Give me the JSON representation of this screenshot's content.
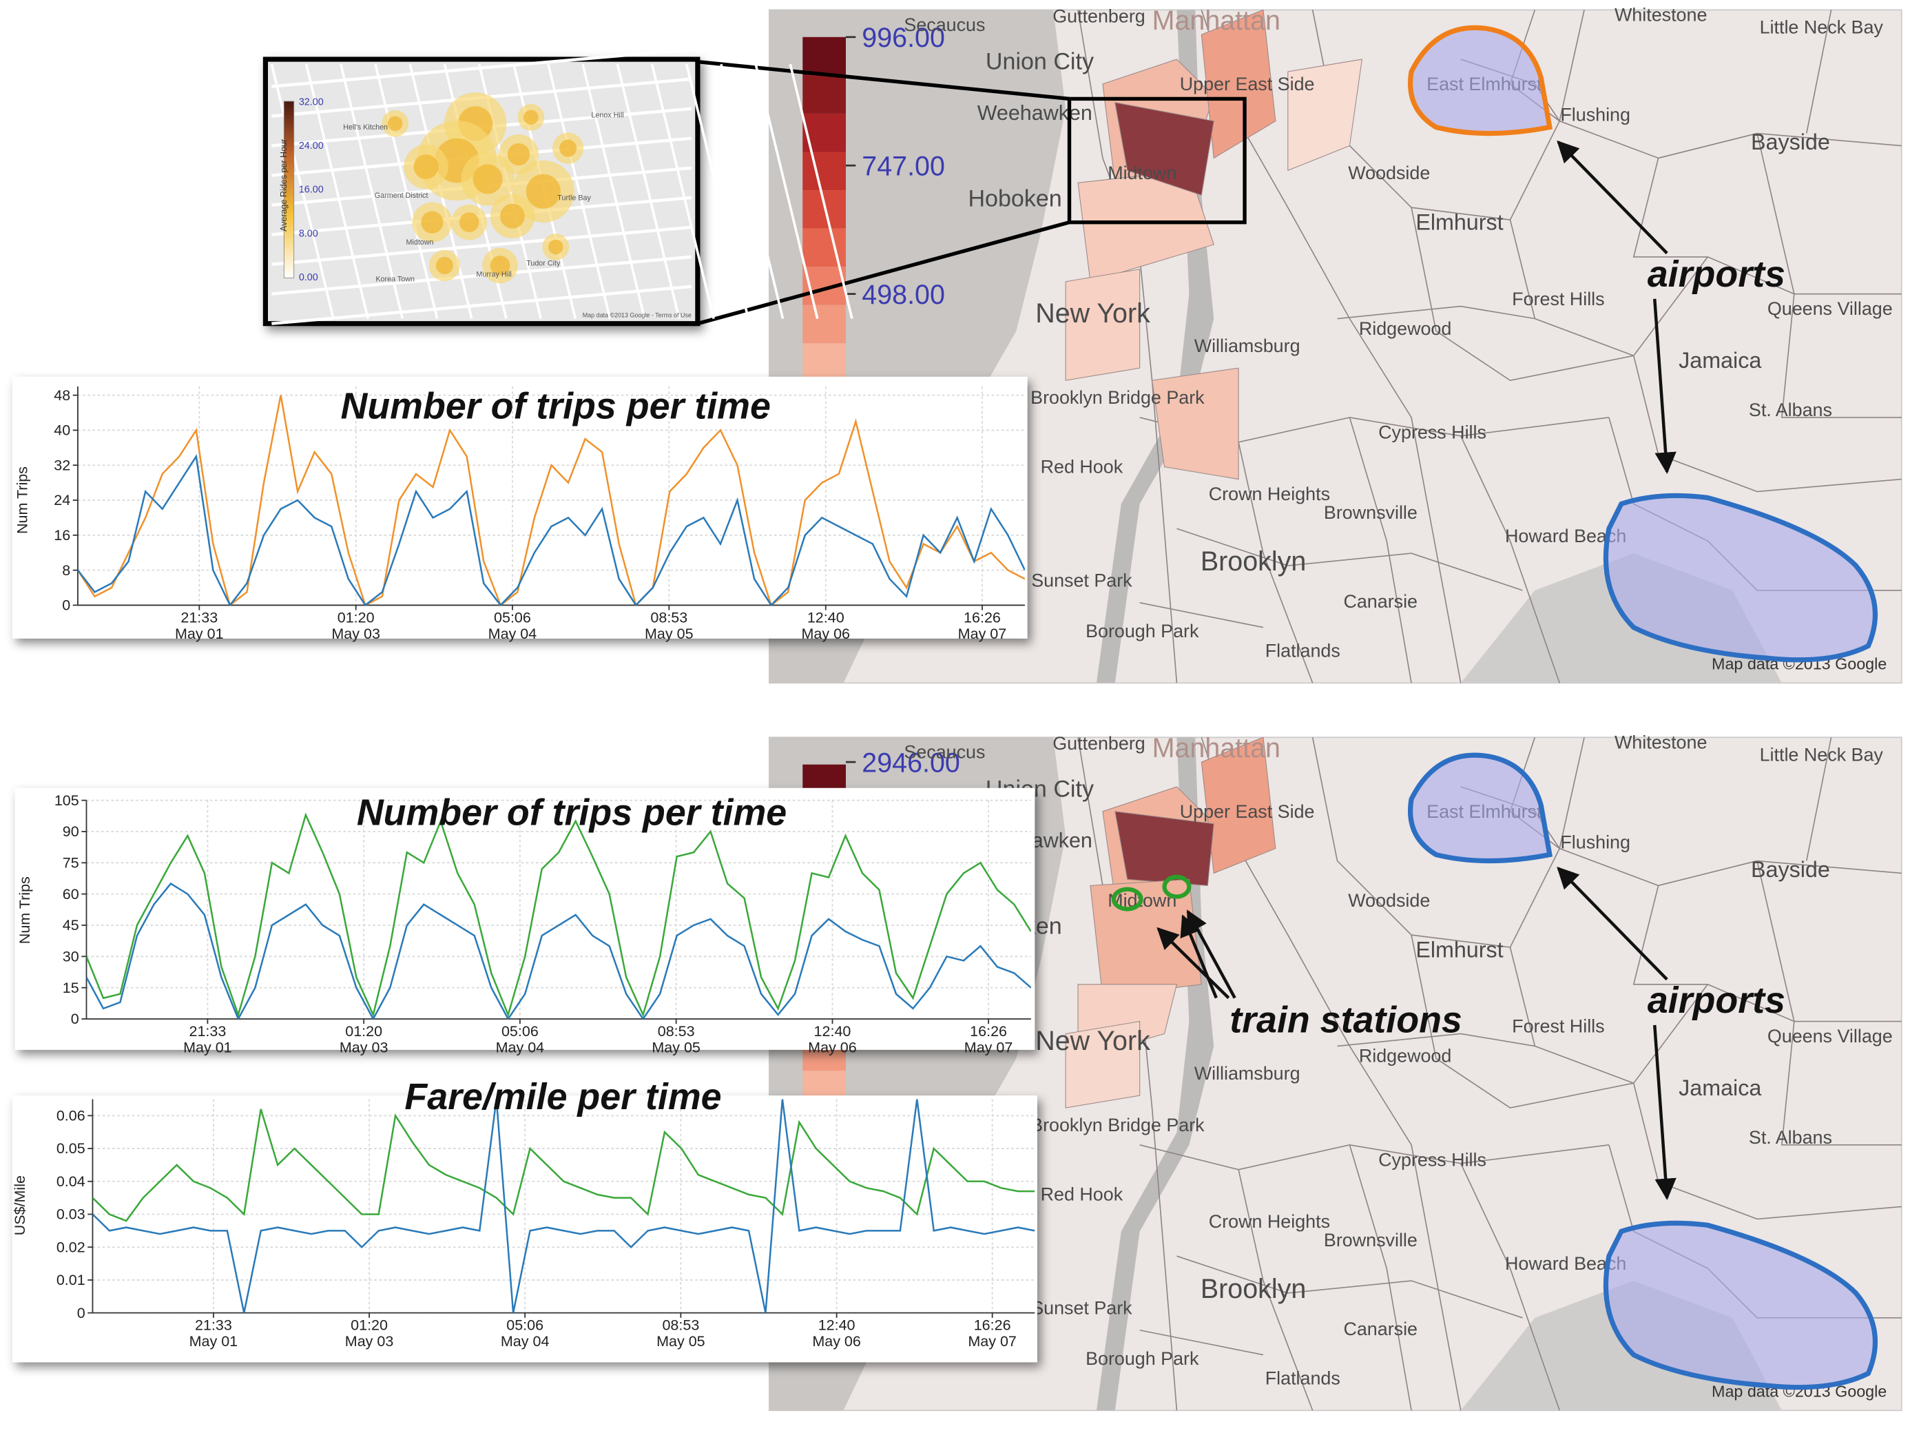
{
  "chart_data": [
    {
      "type": "line",
      "title": "Number of trips per time",
      "ylabel": "Num Trips",
      "x": [
        0,
        3,
        6,
        9,
        12,
        15,
        18,
        21,
        24,
        27,
        30,
        33,
        36,
        39,
        42,
        45,
        48,
        51,
        54,
        57,
        60,
        63,
        66,
        69,
        72,
        75,
        78,
        81,
        84,
        87,
        90,
        93,
        96,
        99,
        102,
        105,
        108,
        111,
        114,
        117,
        120,
        123,
        126,
        129,
        132,
        135,
        138,
        141,
        144,
        147,
        150,
        153,
        156,
        159,
        162,
        165,
        168
      ],
      "xlim": [
        0,
        168
      ],
      "xticks": [
        {
          "value": 21.55,
          "label": "21:33\nMay 01"
        },
        {
          "value": 49.33,
          "label": "01:20\nMay 03"
        },
        {
          "value": 77.1,
          "label": "05:06\nMay 04"
        },
        {
          "value": 104.88,
          "label": "08:53\nMay 05"
        },
        {
          "value": 132.67,
          "label": "12:40\nMay 06"
        },
        {
          "value": 160.43,
          "label": "16:26\nMay 07"
        }
      ],
      "ylim": [
        0,
        50
      ],
      "yticks": [
        0,
        8,
        16,
        24,
        32,
        40,
        48
      ],
      "grid": true,
      "series": [
        {
          "color": "#f0922b",
          "values": [
            8,
            2,
            4,
            12,
            20,
            30,
            34,
            40,
            14,
            0,
            3,
            28,
            48,
            26,
            35,
            30,
            12,
            0,
            2,
            24,
            30,
            27,
            40,
            34,
            10,
            0,
            3,
            20,
            32,
            28,
            38,
            35,
            14,
            0,
            4,
            26,
            30,
            36,
            40,
            32,
            12,
            0,
            3,
            24,
            28,
            30,
            42,
            26,
            10,
            4,
            14,
            12,
            18,
            10,
            12,
            8,
            6
          ]
        },
        {
          "color": "#2a7ab9",
          "values": [
            8,
            3,
            5,
            10,
            26,
            22,
            28,
            34,
            8,
            0,
            5,
            16,
            22,
            24,
            20,
            18,
            6,
            0,
            3,
            14,
            26,
            20,
            22,
            26,
            5,
            0,
            4,
            12,
            18,
            20,
            16,
            22,
            6,
            0,
            4,
            12,
            18,
            20,
            14,
            24,
            6,
            0,
            4,
            16,
            20,
            18,
            16,
            14,
            6,
            2,
            16,
            12,
            20,
            10,
            22,
            16,
            8
          ]
        }
      ]
    },
    {
      "type": "line",
      "title": "Number of trips per time",
      "ylabel": "Num Trips",
      "x": [
        0,
        3,
        6,
        9,
        12,
        15,
        18,
        21,
        24,
        27,
        30,
        33,
        36,
        39,
        42,
        45,
        48,
        51,
        54,
        57,
        60,
        63,
        66,
        69,
        72,
        75,
        78,
        81,
        84,
        87,
        90,
        93,
        96,
        99,
        102,
        105,
        108,
        111,
        114,
        117,
        120,
        123,
        126,
        129,
        132,
        135,
        138,
        141,
        144,
        147,
        150,
        153,
        156,
        159,
        162,
        165,
        168
      ],
      "xlim": [
        0,
        168
      ],
      "xticks": [
        {
          "value": 21.55,
          "label": "21:33\nMay 01"
        },
        {
          "value": 49.33,
          "label": "01:20\nMay 03"
        },
        {
          "value": 77.1,
          "label": "05:06\nMay 04"
        },
        {
          "value": 104.88,
          "label": "08:53\nMay 05"
        },
        {
          "value": 132.67,
          "label": "12:40\nMay 06"
        },
        {
          "value": 160.43,
          "label": "16:26\nMay 07"
        }
      ],
      "ylim": [
        0,
        105
      ],
      "yticks": [
        0,
        15,
        30,
        45,
        60,
        75,
        90,
        105
      ],
      "grid": true,
      "series": [
        {
          "color": "#3aa83a",
          "values": [
            30,
            10,
            12,
            45,
            60,
            75,
            88,
            70,
            25,
            2,
            30,
            75,
            70,
            98,
            80,
            60,
            20,
            2,
            35,
            80,
            75,
            95,
            70,
            55,
            22,
            2,
            30,
            72,
            80,
            95,
            78,
            60,
            20,
            2,
            30,
            78,
            80,
            90,
            65,
            58,
            20,
            5,
            28,
            70,
            68,
            88,
            70,
            62,
            22,
            10,
            35,
            60,
            70,
            75,
            62,
            55,
            42
          ]
        },
        {
          "color": "#2a7ab9",
          "values": [
            20,
            5,
            8,
            40,
            55,
            65,
            60,
            50,
            20,
            0,
            15,
            45,
            50,
            55,
            45,
            40,
            15,
            0,
            15,
            45,
            55,
            50,
            45,
            40,
            15,
            0,
            12,
            40,
            45,
            50,
            40,
            35,
            12,
            0,
            12,
            40,
            45,
            48,
            40,
            35,
            12,
            2,
            12,
            40,
            48,
            42,
            38,
            35,
            12,
            5,
            15,
            30,
            28,
            35,
            25,
            22,
            15
          ]
        }
      ]
    },
    {
      "type": "line",
      "title": "Fare/mile per time",
      "ylabel": "US$/Mile",
      "x": [
        0,
        3,
        6,
        9,
        12,
        15,
        18,
        21,
        24,
        27,
        30,
        33,
        36,
        39,
        42,
        45,
        48,
        51,
        54,
        57,
        60,
        63,
        66,
        69,
        72,
        75,
        78,
        81,
        84,
        87,
        90,
        93,
        96,
        99,
        102,
        105,
        108,
        111,
        114,
        117,
        120,
        123,
        126,
        129,
        132,
        135,
        138,
        141,
        144,
        147,
        150,
        153,
        156,
        159,
        162,
        165,
        168
      ],
      "xlim": [
        0,
        168
      ],
      "xticks": [
        {
          "value": 21.55,
          "label": "21:33\nMay 01"
        },
        {
          "value": 49.33,
          "label": "01:20\nMay 03"
        },
        {
          "value": 77.1,
          "label": "05:06\nMay 04"
        },
        {
          "value": 104.88,
          "label": "08:53\nMay 05"
        },
        {
          "value": 132.67,
          "label": "12:40\nMay 06"
        },
        {
          "value": 160.43,
          "label": "16:26\nMay 07"
        }
      ],
      "ylim": [
        0,
        0.065
      ],
      "yticks": [
        0,
        0.01,
        0.02,
        0.03,
        0.04,
        0.05,
        0.06
      ],
      "grid": true,
      "series": [
        {
          "color": "#3aa83a",
          "values": [
            0.035,
            0.03,
            0.028,
            0.035,
            0.04,
            0.045,
            0.04,
            0.038,
            0.035,
            0.03,
            0.062,
            0.045,
            0.05,
            0.045,
            0.04,
            0.035,
            0.03,
            0.03,
            0.06,
            0.052,
            0.045,
            0.042,
            0.04,
            0.038,
            0.035,
            0.03,
            0.05,
            0.045,
            0.04,
            0.038,
            0.036,
            0.035,
            0.035,
            0.03,
            0.055,
            0.05,
            0.042,
            0.04,
            0.038,
            0.036,
            0.035,
            0.03,
            0.058,
            0.05,
            0.045,
            0.04,
            0.038,
            0.037,
            0.035,
            0.03,
            0.05,
            0.045,
            0.04,
            0.04,
            0.038,
            0.037,
            0.037
          ]
        },
        {
          "color": "#2a7ab9",
          "values": [
            0.03,
            0.025,
            0.026,
            0.025,
            0.024,
            0.025,
            0.026,
            0.025,
            0.025,
            0,
            0.025,
            0.026,
            0.025,
            0.024,
            0.025,
            0.025,
            0.02,
            0.025,
            0.026,
            0.025,
            0.024,
            0.025,
            0.026,
            0.025,
            0.065,
            0,
            0.025,
            0.026,
            0.025,
            0.024,
            0.025,
            0.025,
            0.02,
            0.025,
            0.026,
            0.025,
            0.024,
            0.025,
            0.026,
            0.025,
            0,
            0.065,
            0.025,
            0.026,
            0.025,
            0.024,
            0.025,
            0.025,
            0.025,
            0.065,
            0.025,
            0.026,
            0.025,
            0.024,
            0.025,
            0.026,
            0.025
          ]
        }
      ]
    }
  ],
  "maps": [
    {
      "legend_labels": [
        "996.00",
        "747.00",
        "498.00"
      ],
      "annotations": [
        "airports"
      ]
    },
    {
      "legend_labels": [
        "2946.00"
      ],
      "annotations": [
        "airports",
        "train stations"
      ]
    }
  ],
  "map_places": [
    "Secaucus",
    "Guttenberg",
    "Manhattan",
    "Whitestone",
    "Union City",
    "Weehawken",
    "Hoboken",
    "Upper East Side",
    "Midtown",
    "Woodside",
    "Flushing",
    "Bayside",
    "East Elmhurst",
    "Elmhurst",
    "Forest Hills",
    "Queens Village",
    "New York",
    "Williamsburg",
    "Ridgewood",
    "Jamaica",
    "St. Albans",
    "Brooklyn Bridge Park",
    "Cypress Hills",
    "Red Hook",
    "Crown Heights",
    "Brownsville",
    "Howard Beach",
    "Brooklyn",
    "Sunset Park",
    "Canarsie",
    "Borough Park",
    "Flatlands",
    "Little Neck Bay"
  ],
  "map_credit": "Map data ©2013 Google",
  "inset": {
    "legend_labels": [
      "32.00",
      "24.00",
      "16.00",
      "8.00",
      "0.00"
    ],
    "legend_title": "Average Rides per Hour",
    "places": [
      "Hell's Kitchen",
      "Garment District",
      "Midtown",
      "Korea Town",
      "Murray Hill",
      "Tudor City",
      "Turtle Bay",
      "Lenox Hill"
    ],
    "credit": "Map data ©2013 Google - Terms of Use"
  }
}
